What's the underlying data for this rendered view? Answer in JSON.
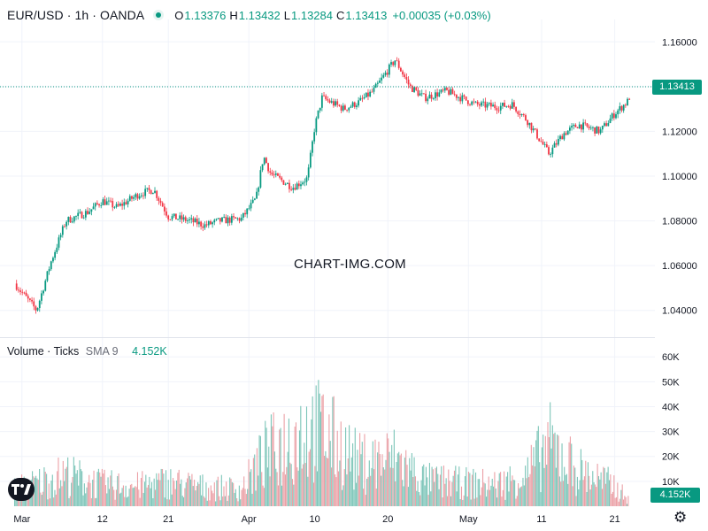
{
  "header": {
    "symbol": "EUR/USD · 1h · OANDA",
    "open_label": "O",
    "open": "1.13376",
    "high_label": "H",
    "high": "1.13432",
    "low_label": "L",
    "low": "1.13284",
    "close_label": "C",
    "close": "1.13413",
    "change": "+0.00035 (+0.03%)"
  },
  "volume_header": {
    "title": "Volume · Ticks",
    "sma_label": "SMA 9",
    "sma_value": "4.152K"
  },
  "watermark": "CHART-IMG.COM",
  "last_price_tag": "1.13413",
  "last_volume_tag": "4.152K",
  "colors": {
    "up": "#089981",
    "down": "#f23645",
    "up_volume": "#7cc5b8",
    "down_volume": "#eba0a6",
    "grid": "#f0f3fa",
    "text": "#131722"
  },
  "icons": {
    "logo": "tradingview-logo-icon",
    "settings": "gear-icon",
    "status": "live-dot-icon"
  },
  "chart_data": [
    {
      "type": "candlestick",
      "title": "EUR/USD · 1h · OANDA",
      "x_axis_labels": [
        "Mar",
        "12",
        "21",
        "Apr",
        "10",
        "20",
        "May",
        "11",
        "21"
      ],
      "y_ticks": [
        "1.04000",
        "1.06000",
        "1.08000",
        "1.10000",
        "1.12000",
        "1.14000",
        "1.16000"
      ],
      "ylim": [
        1.03,
        1.17
      ],
      "last_price": 1.13413,
      "grid": true,
      "series": [
        {
          "name": "EUR/USD",
          "x": [
            "Feb 28",
            "Mar 3",
            "Mar 5",
            "Mar 7",
            "Mar 10",
            "Mar 12",
            "Mar 14",
            "Mar 17",
            "Mar 19",
            "Mar 21",
            "Mar 24",
            "Mar 26",
            "Mar 28",
            "Mar 31",
            "Apr 2",
            "Apr 3",
            "Apr 4",
            "Apr 7",
            "Apr 9",
            "Apr 10",
            "Apr 11",
            "Apr 14",
            "Apr 16",
            "Apr 18",
            "Apr 21",
            "Apr 23",
            "Apr 25",
            "Apr 28",
            "Apr 30",
            "May 2",
            "May 5",
            "May 7",
            "May 9",
            "May 12",
            "May 14",
            "May 16",
            "May 19",
            "May 21",
            "May 23"
          ],
          "values": [
            1.052,
            1.04,
            1.062,
            1.08,
            1.084,
            1.089,
            1.086,
            1.092,
            1.094,
            1.082,
            1.08,
            1.078,
            1.08,
            1.081,
            1.09,
            1.109,
            1.101,
            1.095,
            1.099,
            1.122,
            1.135,
            1.13,
            1.133,
            1.138,
            1.152,
            1.14,
            1.135,
            1.138,
            1.135,
            1.132,
            1.131,
            1.132,
            1.125,
            1.11,
            1.119,
            1.123,
            1.12,
            1.128,
            1.1341
          ]
        }
      ]
    },
    {
      "type": "bar",
      "title": "Volume · Ticks",
      "y_ticks": [
        "10K",
        "20K",
        "30K",
        "40K",
        "50K",
        "60K"
      ],
      "ylim": [
        0,
        60000
      ],
      "sma_9": 4152,
      "series": [
        {
          "name": "Volume",
          "x": [
            "Feb 28",
            "Mar 3",
            "Mar 7",
            "Mar 12",
            "Mar 17",
            "Mar 21",
            "Mar 26",
            "Mar 31",
            "Apr 3",
            "Apr 7",
            "Apr 9",
            "Apr 11",
            "Apr 16",
            "Apr 21",
            "Apr 25",
            "Apr 30",
            "May 5",
            "May 9",
            "May 12",
            "May 16",
            "May 21",
            "May 23"
          ],
          "values": [
            12000,
            16000,
            22000,
            15000,
            14000,
            17000,
            13000,
            12000,
            34000,
            48000,
            54000,
            52000,
            30000,
            33000,
            18000,
            16000,
            15000,
            22000,
            43000,
            25000,
            14000,
            4152
          ]
        }
      ]
    }
  ]
}
